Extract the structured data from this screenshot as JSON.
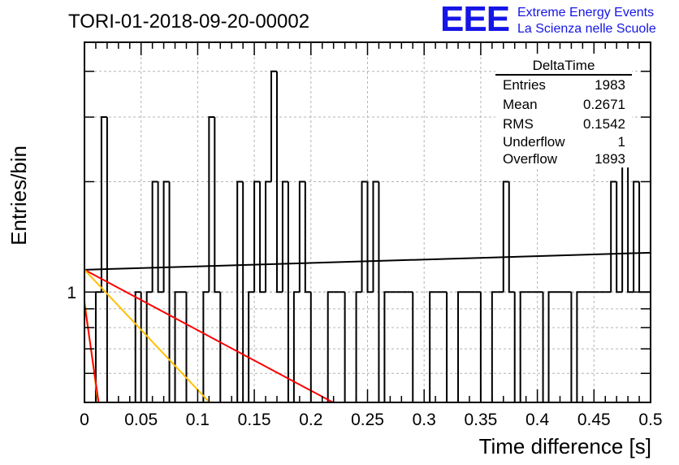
{
  "header": {
    "title": "TORI-01-2018-09-20-00002",
    "logo_text": "EEE",
    "logo_line1": "Extreme Energy Events",
    "logo_line2": "La Scienza nelle Scuole",
    "logo_color": "#1515e6"
  },
  "stats_box": {
    "title": "DeltaTime",
    "rows": [
      {
        "label": "Entries",
        "value": "1983"
      },
      {
        "label": "Mean",
        "value": "0.2671"
      },
      {
        "label": "RMS",
        "value": "0.1542"
      },
      {
        "label": "Underflow",
        "value": "1"
      },
      {
        "label": "Overflow",
        "value": "1893"
      }
    ]
  },
  "chart_data": {
    "type": "histogram",
    "title": "TORI-01-2018-09-20-00002",
    "xlabel": "Time difference [s]",
    "ylabel": "Entries/bin",
    "xlim": [
      0,
      0.5
    ],
    "ylim": [
      0.5,
      4.8
    ],
    "y_scale": "log",
    "grid": true,
    "x_tick_labels": [
      "0",
      "0.05",
      "0.1",
      "0.15",
      "0.2",
      "0.25",
      "0.3",
      "0.35",
      "0.4",
      "0.45",
      "0.5"
    ],
    "x_ticks": [
      0,
      0.05,
      0.1,
      0.15,
      0.2,
      0.25,
      0.3,
      0.35,
      0.4,
      0.45,
      0.5
    ],
    "y_tick_labels": [
      "1"
    ],
    "y_ticks": [
      1
    ],
    "bin_width": 0.005,
    "bin_counts": [
      0,
      0,
      1,
      3,
      0,
      0,
      0,
      0,
      0,
      1,
      0,
      1,
      2,
      1,
      2,
      0,
      1,
      1,
      0,
      0,
      0,
      1,
      3,
      1,
      0,
      0,
      0,
      2,
      0,
      1,
      2,
      1,
      2,
      4,
      1,
      2,
      0,
      1,
      2,
      1,
      0,
      0,
      0,
      1,
      1,
      1,
      0,
      0,
      1,
      2,
      1,
      2,
      0,
      1,
      1,
      1,
      1,
      1,
      0,
      0,
      0,
      1,
      1,
      1,
      0,
      0,
      1,
      1,
      1,
      1,
      0,
      0,
      1,
      1,
      2,
      1,
      0,
      1,
      1,
      1,
      1,
      0,
      1,
      1,
      1,
      1,
      0,
      1,
      1,
      1,
      1,
      1,
      1,
      2,
      1,
      3,
      1,
      2,
      1,
      1
    ],
    "fits": [
      {
        "color": "#000000",
        "points": [
          [
            0,
            1.15
          ],
          [
            0.5,
            1.28
          ]
        ]
      },
      {
        "color": "#ff0000",
        "points": [
          [
            0,
            1.15
          ],
          [
            0.2195,
            0.5
          ]
        ]
      },
      {
        "color": "#ffc000",
        "points": [
          [
            0,
            1.15
          ],
          [
            0.1105,
            0.5
          ]
        ]
      },
      {
        "color": "#ffc000",
        "points": [
          [
            0,
            0.95
          ],
          [
            0.012,
            0.5
          ]
        ]
      },
      {
        "color": "#ff0000",
        "points": [
          [
            0,
            0.93
          ],
          [
            0.0125,
            0.5
          ]
        ]
      }
    ]
  }
}
